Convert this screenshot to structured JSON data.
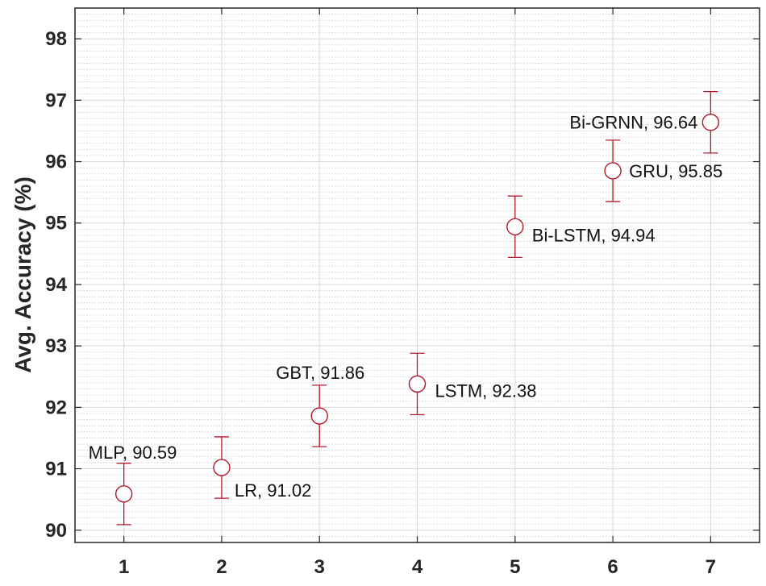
{
  "chart_data": {
    "type": "scatter",
    "title": "",
    "xlabel": "",
    "ylabel": "Avg. Accuracy (%)",
    "xlim": [
      0.5,
      7.5
    ],
    "ylim": [
      89.8,
      98.5
    ],
    "xticks": [
      "1",
      "2",
      "3",
      "4",
      "5",
      "6",
      "7"
    ],
    "yticks": [
      "90",
      "91",
      "92",
      "93",
      "94",
      "95",
      "96",
      "97",
      "98"
    ],
    "grid": true,
    "minor_grid": true,
    "marker": "circle-open",
    "color": "#B2182B",
    "series": [
      {
        "points": [
          {
            "x": 1,
            "y": 90.59,
            "err": 0.5,
            "label": "MLP, 90.59"
          },
          {
            "x": 2,
            "y": 91.02,
            "err": 0.5,
            "label": "LR, 91.02"
          },
          {
            "x": 3,
            "y": 91.86,
            "err": 0.5,
            "label": "GBT, 91.86"
          },
          {
            "x": 4,
            "y": 92.38,
            "err": 0.5,
            "label": "LSTM, 92.38"
          },
          {
            "x": 5,
            "y": 94.94,
            "err": 0.5,
            "label": "Bi-LSTM, 94.94"
          },
          {
            "x": 6,
            "y": 95.85,
            "err": 0.5,
            "label": "GRU, 95.85"
          },
          {
            "x": 7,
            "y": 96.64,
            "err": 0.5,
            "label": "Bi-GRNN, 96.64"
          }
        ]
      }
    ]
  }
}
